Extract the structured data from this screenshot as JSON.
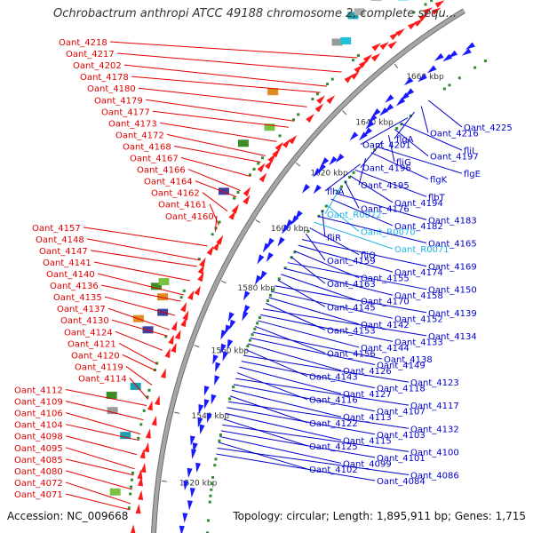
{
  "title": "Ochrobactrum anthropi ATCC 49188 chromosome 2, complete sequ...",
  "footer": {
    "accession": "Accession: NC_009668",
    "summary": "Topology: circular; Length: 1,895,911 bp; Genes: 1,715"
  },
  "colors": {
    "backbone": "#a6a6a6",
    "left_label": "#e00000",
    "right_label": "#0000cc",
    "rna_label": "#1fb4e6",
    "forward_arrow": "#ff1a1a",
    "reverse_arrow": "#1a1aff",
    "dot": "#2e8b2e"
  },
  "kbp_ticks": [
    {
      "kbp": 1520,
      "label": "1520 kbp"
    },
    {
      "kbp": 1540,
      "label": "1540 kbp"
    },
    {
      "kbp": 1560,
      "label": "1560 kbp"
    },
    {
      "kbp": 1580,
      "label": "1580 kbp"
    },
    {
      "kbp": 1600,
      "label": "1600 kbp"
    },
    {
      "kbp": 1620,
      "label": "1620 kbp"
    },
    {
      "kbp": 1640,
      "label": "1640 kbp"
    },
    {
      "kbp": 1660,
      "label": "1660 kbp"
    }
  ],
  "left_labels": [
    "Oant_4218",
    "Oant_4217",
    "Oant_4202",
    "Oant_4178",
    "Oant_4180",
    "Oant_4179",
    "Oant_4177",
    "Oant_4173",
    "Oant_4172",
    "Oant_4168",
    "Oant_4167",
    "Oant_4166",
    "Oant_4164",
    "Oant_4162",
    "Oant_4161",
    "Oant_4160",
    "Oant_4157",
    "Oant_4148",
    "Oant_4147",
    "Oant_4141",
    "Oant_4140",
    "Oant_4136",
    "Oant_4135",
    "Oant_4137",
    "Oant_4130",
    "Oant_4124",
    "Oant_4121",
    "Oant_4120",
    "Oant_4119",
    "Oant_4114",
    "Oant_4112",
    "Oant_4109",
    "Oant_4106",
    "Oant_4104",
    "Oant_4098",
    "Oant_4095",
    "Oant_4085",
    "Oant_4080",
    "Oant_4072",
    "Oant_4071"
  ],
  "right_labels": [
    "Oant_4225",
    "Oant_4216",
    "flgA",
    "Oant_4201",
    "fliI",
    "Oant_4197",
    "fliG",
    "Oant_4196",
    "flgE",
    "flgK",
    "Oant_4195",
    "flhA",
    "flbT",
    "Oant_4194",
    "Oant_4176",
    "Oant_R0072",
    "Oant_4183",
    "Oant_4182",
    "Oant_R0070",
    "fliR",
    "Oant_4165",
    "Oant_R0071",
    "fliQ",
    "Oant_4159",
    "Oant_4169",
    "Oant_4174",
    "Oant_4155",
    "Oant_4163",
    "Oant_4150",
    "Oant_4158",
    "Oant_4170",
    "Oant_4145",
    "Oant_4139",
    "Oant_4152",
    "Oant_4142",
    "Oant_4153",
    "Oant_4134",
    "Oant_4133",
    "Oant_4144",
    "Oant_4156",
    "Oant_4138",
    "Oant_4149",
    "Oant_4126",
    "Oant_4143",
    "Oant_4123",
    "Oant_4118",
    "Oant_4127",
    "Oant_4116",
    "Oant_4117",
    "Oant_4107",
    "Oant_4113",
    "Oant_4122",
    "Oant_4132",
    "Oant_4103",
    "Oant_4115",
    "Oant_4125",
    "Oant_4100",
    "Oant_4101",
    "Oant_4099",
    "Oant_4102",
    "Oant_4086",
    "Oant_4084"
  ]
}
